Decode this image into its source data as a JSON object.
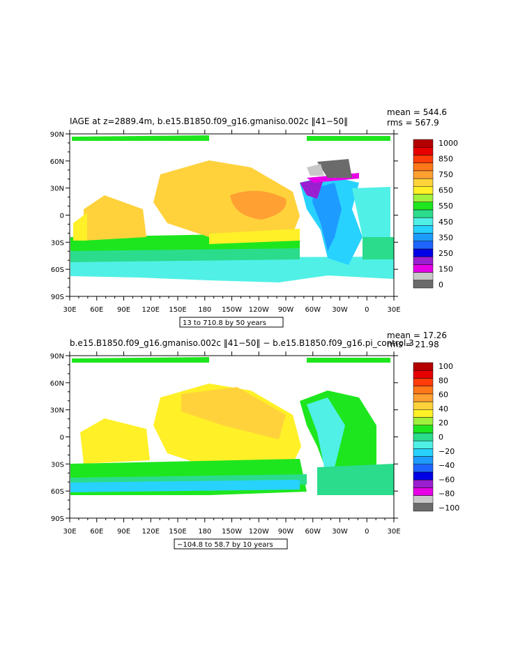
{
  "colors": {
    "palette_top": [
      "#6b6b6b",
      "#c8c8c8",
      "#e600e6",
      "#9a1fd0",
      "#0000e6",
      "#1e64ff",
      "#1e9bff",
      "#28d2ff",
      "#50f0e6",
      "#2adc8c",
      "#1ee61e",
      "#a0f03c",
      "#fff028",
      "#ffd23c",
      "#ffa032",
      "#ff7819",
      "#ff3c0a",
      "#e60000",
      "#b40000"
    ],
    "palette_bottom": [
      "#6b6b6b",
      "#c8c8c8",
      "#e600e6",
      "#9a1fd0",
      "#0000e6",
      "#1e64ff",
      "#1e9bff",
      "#28d2ff",
      "#50f0e6",
      "#2adc8c",
      "#1ee61e",
      "#a0f03c",
      "#fff028",
      "#ffd23c",
      "#ffa032",
      "#ff7819",
      "#ff3c0a",
      "#e60000",
      "#b40000"
    ]
  },
  "chart_data": [
    {
      "type": "heatmap",
      "title": "IAGE at z=2889.4m, b.e15.B1850.f09_g16.gmaniso.002c  ‖41−50‖",
      "stats": [
        "mean = 544.6",
        "rms = 567.9"
      ],
      "x_ticks": [
        "30E",
        "60E",
        "90E",
        "120E",
        "150E",
        "180",
        "150W",
        "120W",
        "90W",
        "60W",
        "30W",
        "0",
        "30E"
      ],
      "y_ticks": [
        "90N",
        "60N",
        "30N",
        "0",
        "30S",
        "60S",
        "90S"
      ],
      "colorbar_labels": [
        "1000",
        "850",
        "750",
        "650",
        "550",
        "450",
        "350",
        "250",
        "150",
        "0"
      ],
      "range_label": "13 to 710.8 by 50 years",
      "summary": {
        "mean": 544.6,
        "rms": 567.9,
        "min": 13,
        "max": 710.8,
        "interval": 50
      }
    },
    {
      "type": "heatmap",
      "title": "b.e15.B1850.f09_g16.gmaniso.002c  ‖41−50‖  −  b.e15.B1850.f09_g16.pi_control.3",
      "stats": [
        "mean = 17.26",
        "rms = 21.98"
      ],
      "x_ticks": [
        "30E",
        "60E",
        "90E",
        "120E",
        "150E",
        "180",
        "150W",
        "120W",
        "90W",
        "60W",
        "30W",
        "0",
        "30E"
      ],
      "y_ticks": [
        "90N",
        "60N",
        "30N",
        "0",
        "30S",
        "60S",
        "90S"
      ],
      "colorbar_labels": [
        "100",
        "80",
        "60",
        "40",
        "20",
        "0",
        "−20",
        "−40",
        "−60",
        "−80",
        "−100"
      ],
      "range_label": "−104.8 to 58.7 by 10 years",
      "summary": {
        "mean": 17.26,
        "rms": 21.98,
        "min": -104.8,
        "max": 58.7,
        "interval": 10
      }
    }
  ]
}
